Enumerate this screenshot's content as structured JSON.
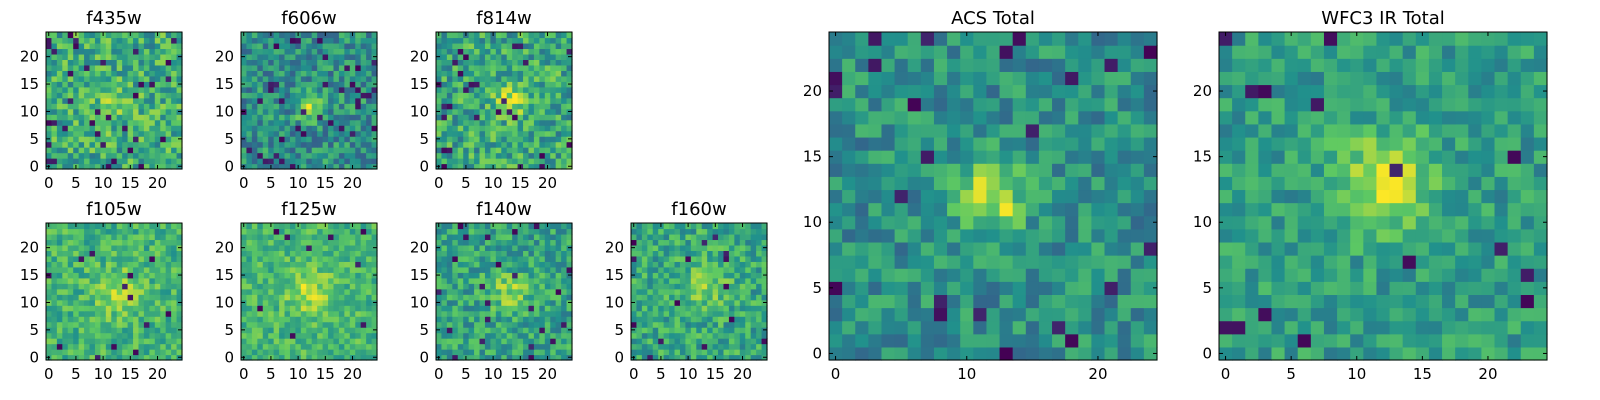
{
  "figure": {
    "colormap": [
      "#440154",
      "#3b528b",
      "#21918c",
      "#5ec962",
      "#fde725"
    ]
  },
  "chart_data": [
    {
      "type": "heatmap",
      "title": "f435w",
      "xlim": [
        -0.5,
        24.5
      ],
      "ylim": [
        -0.5,
        24.5
      ],
      "x_ticks": [
        0,
        5,
        10,
        15,
        20
      ],
      "y_ticks": [
        0,
        5,
        10,
        15,
        20
      ],
      "grid": false,
      "seed": 11,
      "base": 0.62,
      "noise": 0.22,
      "dark_rate": 0.05,
      "blob_center": [
        12,
        11
      ],
      "blob_sigma": 2.5,
      "blob_amp": 0.15
    },
    {
      "type": "heatmap",
      "title": "f606w",
      "xlim": [
        -0.5,
        24.5
      ],
      "ylim": [
        -0.5,
        24.5
      ],
      "x_ticks": [
        0,
        5,
        10,
        15,
        20
      ],
      "y_ticks": [
        0,
        5,
        10,
        15,
        20
      ],
      "grid": false,
      "seed": 23,
      "base": 0.5,
      "noise": 0.2,
      "dark_rate": 0.05,
      "blob_center": [
        12,
        11
      ],
      "blob_sigma": 1.6,
      "blob_amp": 0.45
    },
    {
      "type": "heatmap",
      "title": "f814w",
      "xlim": [
        -0.5,
        24.5
      ],
      "ylim": [
        -0.5,
        24.5
      ],
      "x_ticks": [
        0,
        5,
        10,
        15,
        20
      ],
      "y_ticks": [
        0,
        5,
        10,
        15,
        20
      ],
      "grid": false,
      "seed": 37,
      "base": 0.6,
      "noise": 0.22,
      "dark_rate": 0.05,
      "blob_center": [
        13,
        12
      ],
      "blob_sigma": 2.0,
      "blob_amp": 0.3
    },
    {
      "type": "heatmap",
      "title": "f105w",
      "xlim": [
        -0.5,
        24.5
      ],
      "ylim": [
        -0.5,
        24.5
      ],
      "x_ticks": [
        0,
        5,
        10,
        15,
        20
      ],
      "y_ticks": [
        0,
        5,
        10,
        15,
        20
      ],
      "grid": false,
      "seed": 41,
      "base": 0.65,
      "noise": 0.16,
      "dark_rate": 0.02,
      "blob_center": [
        13,
        12
      ],
      "blob_sigma": 3.0,
      "blob_amp": 0.2
    },
    {
      "type": "heatmap",
      "title": "f125w",
      "xlim": [
        -0.5,
        24.5
      ],
      "ylim": [
        -0.5,
        24.5
      ],
      "x_ticks": [
        0,
        5,
        10,
        15,
        20
      ],
      "y_ticks": [
        0,
        5,
        10,
        15,
        20
      ],
      "grid": false,
      "seed": 53,
      "base": 0.66,
      "noise": 0.15,
      "dark_rate": 0.015,
      "blob_center": [
        12,
        12
      ],
      "blob_sigma": 3.0,
      "blob_amp": 0.22
    },
    {
      "type": "heatmap",
      "title": "f140w",
      "xlim": [
        -0.5,
        24.5
      ],
      "ylim": [
        -0.5,
        24.5
      ],
      "x_ticks": [
        0,
        5,
        10,
        15,
        20
      ],
      "y_ticks": [
        0,
        5,
        10,
        15,
        20
      ],
      "grid": false,
      "seed": 67,
      "base": 0.58,
      "noise": 0.18,
      "dark_rate": 0.03,
      "blob_center": [
        13,
        12
      ],
      "blob_sigma": 2.8,
      "blob_amp": 0.22
    },
    {
      "type": "heatmap",
      "title": "f160w",
      "xlim": [
        -0.5,
        24.5
      ],
      "ylim": [
        -0.5,
        24.5
      ],
      "x_ticks": [
        0,
        5,
        10,
        15,
        20
      ],
      "y_ticks": [
        0,
        5,
        10,
        15,
        20
      ],
      "grid": false,
      "seed": 79,
      "base": 0.6,
      "noise": 0.18,
      "dark_rate": 0.03,
      "blob_center": [
        13,
        13
      ],
      "blob_sigma": 2.8,
      "blob_amp": 0.22
    },
    {
      "type": "heatmap",
      "title": "ACS Total",
      "xlim": [
        -0.5,
        24.5
      ],
      "ylim": [
        -0.5,
        24.5
      ],
      "x_ticks": [
        0,
        10,
        20
      ],
      "y_ticks": [
        0,
        5,
        10,
        15,
        20
      ],
      "grid": false,
      "seed": 97,
      "base": 0.5,
      "noise": 0.17,
      "dark_rate": 0.04,
      "blob_center": [
        12,
        12
      ],
      "blob_sigma": 1.8,
      "blob_amp": 0.45
    },
    {
      "type": "heatmap",
      "title": "WFC3 IR Total",
      "xlim": [
        -0.5,
        24.5
      ],
      "ylim": [
        -0.5,
        24.5
      ],
      "x_ticks": [
        0,
        5,
        10,
        15,
        20
      ],
      "y_ticks": [
        0,
        5,
        10,
        15,
        20
      ],
      "grid": false,
      "seed": 113,
      "base": 0.55,
      "noise": 0.15,
      "dark_rate": 0.02,
      "blob_center": [
        12,
        13
      ],
      "blob_sigma": 2.6,
      "blob_amp": 0.38
    }
  ]
}
